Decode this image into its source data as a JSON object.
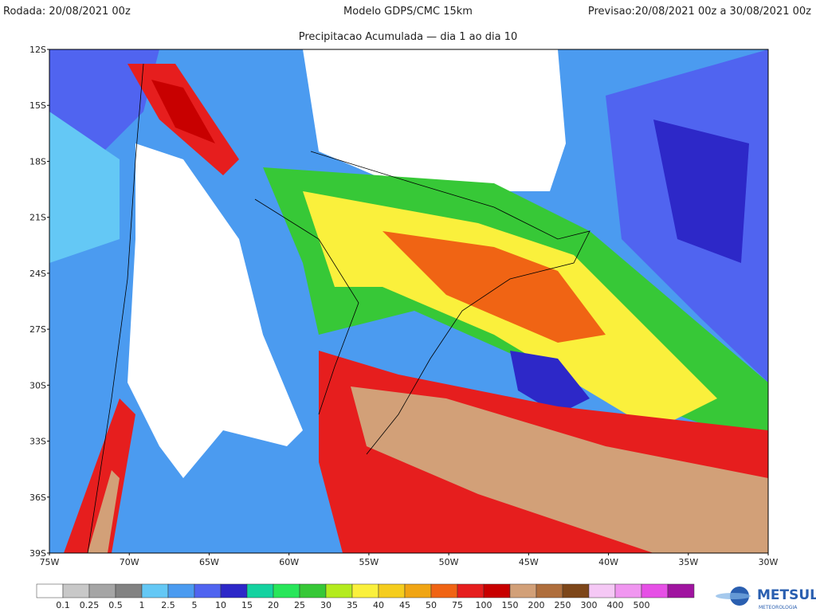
{
  "header": {
    "run": "Rodada: 20/08/2021 00z",
    "model": "Modelo GDPS/CMC 15km",
    "forecast": "Previsao:20/08/2021 00z a 30/08/2021 00z",
    "subtitle": "Precipitacao Acumulada — dia 1 ao dia 10"
  },
  "map": {
    "lat_labels": [
      "12S",
      "15S",
      "18S",
      "21S",
      "24S",
      "27S",
      "30S",
      "33S",
      "36S",
      "39S"
    ],
    "lon_labels": [
      "75W",
      "70W",
      "65W",
      "60W",
      "55W",
      "50W",
      "45W",
      "40W",
      "35W",
      "30W"
    ]
  },
  "colorbar": {
    "colors": [
      "#ffffff",
      "#c8c8c8",
      "#a5a5a5",
      "#828282",
      "#64c8f5",
      "#4b9bf0",
      "#5064f0",
      "#2d28c8",
      "#14d2a0",
      "#28e65a",
      "#37c837",
      "#b4eb1e",
      "#faf03c",
      "#f5cd1e",
      "#f0a514",
      "#f06414",
      "#e61e1e",
      "#c80000",
      "#d2a078",
      "#af6e3c",
      "#7d4619",
      "#f5c8f5",
      "#f096f0",
      "#e650e6",
      "#a014a0"
    ],
    "labels": [
      "0.1",
      "0.25",
      "0.5",
      "1",
      "2.5",
      "5",
      "10",
      "15",
      "20",
      "25",
      "30",
      "35",
      "40",
      "45",
      "50",
      "75",
      "100",
      "150",
      "200",
      "250",
      "300",
      "400",
      "500"
    ]
  },
  "logo": {
    "name": "METSUL",
    "tagline": "METEOROLOGIA"
  }
}
